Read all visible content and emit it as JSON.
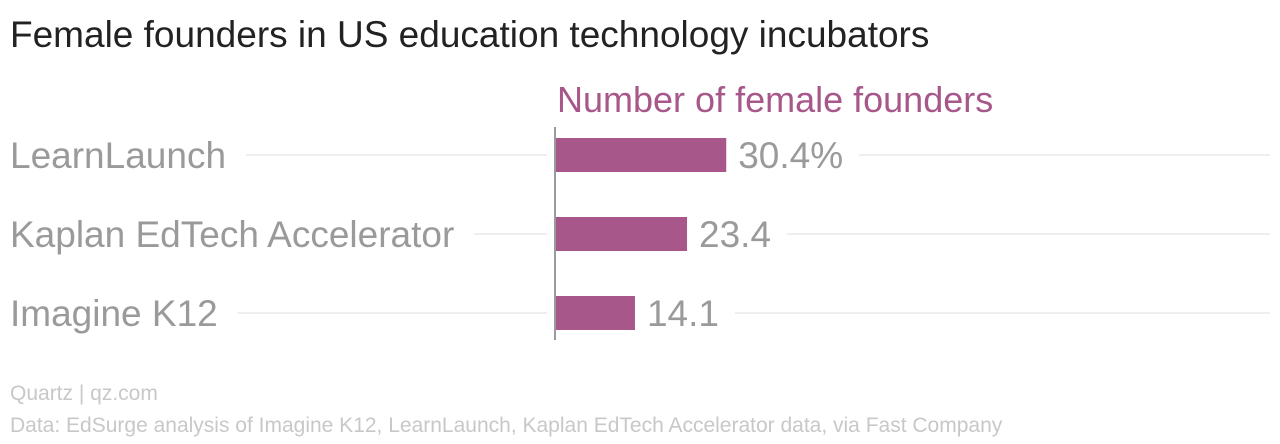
{
  "title": "Female founders in US education technology incubators",
  "footer": {
    "source_brand": "Quartz | qz.com",
    "data_note": "Data: EdSurge analysis of Imagine K12, LearnLaunch, Kaplan EdTech Accelerator data, via Fast Company"
  },
  "colors": {
    "bar": "#a8578a",
    "header": "#a8578a",
    "label": "#9a9a9a",
    "gridline": "#eeeeee",
    "axis": "#9a9a9a"
  },
  "chart_data": {
    "type": "bar",
    "orientation": "horizontal",
    "series_header": "Number of female founders",
    "categories": [
      "LearnLaunch",
      "Kaplan EdTech Accelerator",
      "Imagine K12"
    ],
    "values": [
      30.4,
      23.4,
      14.1
    ],
    "value_labels": [
      "30.4%",
      "23.4",
      "14.1"
    ],
    "xlim": [
      0,
      100
    ],
    "grid": true,
    "legend": "none"
  }
}
